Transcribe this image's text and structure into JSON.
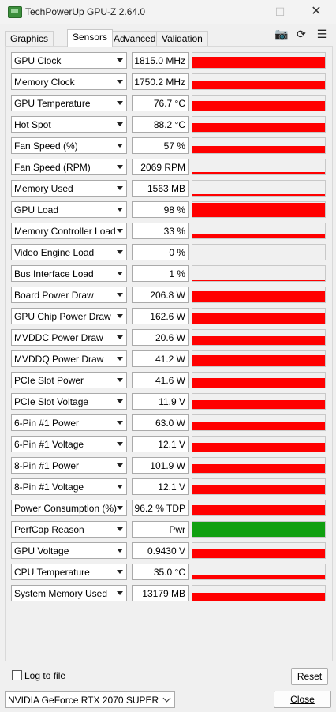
{
  "window": {
    "title": "TechPowerUp GPU-Z 2.64.0"
  },
  "tabs": [
    {
      "label": "Graphics Card"
    },
    {
      "label": "Sensors"
    },
    {
      "label": "Advanced"
    },
    {
      "label": "Validation"
    }
  ],
  "toolbar_icons": [
    "camera-icon",
    "refresh-icon",
    "menu-icon"
  ],
  "colors": {
    "graph_red": "#ff0000",
    "graph_green": "#10a010"
  },
  "sensors": [
    {
      "label": "GPU Clock",
      "value": "1815.0 MHz",
      "level": 0.75
    },
    {
      "label": "Memory Clock",
      "value": "1750.2 MHz",
      "level": 0.6
    },
    {
      "label": "GPU Temperature",
      "value": "76.7 °C",
      "level": 0.65
    },
    {
      "label": "Hot Spot",
      "value": "88.2 °C",
      "level": 0.6
    },
    {
      "label": "Fan Speed (%)",
      "value": "57 %",
      "level": 0.45
    },
    {
      "label": "Fan Speed (RPM)",
      "value": "2069 RPM",
      "level": 0.18
    },
    {
      "label": "Memory Used",
      "value": "1563 MB",
      "level": 0.12
    },
    {
      "label": "GPU Load",
      "value": "98 %",
      "level": 0.95
    },
    {
      "label": "Memory Controller Load",
      "value": "33 %",
      "level": 0.3
    },
    {
      "label": "Video Engine Load",
      "value": "0 %",
      "level": 0.0
    },
    {
      "label": "Bus Interface Load",
      "value": "1 %",
      "level": 0.03
    },
    {
      "label": "Board Power Draw",
      "value": "206.8 W",
      "level": 0.75
    },
    {
      "label": "GPU Chip Power Draw",
      "value": "162.6 W",
      "level": 0.7
    },
    {
      "label": "MVDDC Power Draw",
      "value": "20.6 W",
      "level": 0.6
    },
    {
      "label": "MVDDQ Power Draw",
      "value": "41.2 W",
      "level": 0.75
    },
    {
      "label": "PCIe Slot Power",
      "value": "41.6 W",
      "level": 0.62
    },
    {
      "label": "PCIe Slot Voltage",
      "value": "11.9 V",
      "level": 0.6
    },
    {
      "label": "6-Pin #1 Power",
      "value": "63.0 W",
      "level": 0.55
    },
    {
      "label": "6-Pin #1 Voltage",
      "value": "12.1 V",
      "level": 0.58
    },
    {
      "label": "8-Pin #1 Power",
      "value": "101.9 W",
      "level": 0.6
    },
    {
      "label": "8-Pin #1 Voltage",
      "value": "12.1 V",
      "level": 0.58
    },
    {
      "label": "Power Consumption (%)",
      "value": "96.2 % TDP",
      "level": 0.7
    },
    {
      "label": "PerfCap Reason",
      "value": "Pwr",
      "level": 1.0,
      "color": "green"
    },
    {
      "label": "GPU Voltage",
      "value": "0.9430 V",
      "level": 0.6
    },
    {
      "label": "CPU Temperature",
      "value": "35.0 °C",
      "level": 0.3
    },
    {
      "label": "System Memory Used",
      "value": "13179 MB",
      "level": 0.5
    }
  ],
  "footer": {
    "log_to_file": "Log to file",
    "reset": "Reset",
    "gpu_name": "NVIDIA GeForce RTX 2070 SUPER",
    "close": "Close"
  }
}
